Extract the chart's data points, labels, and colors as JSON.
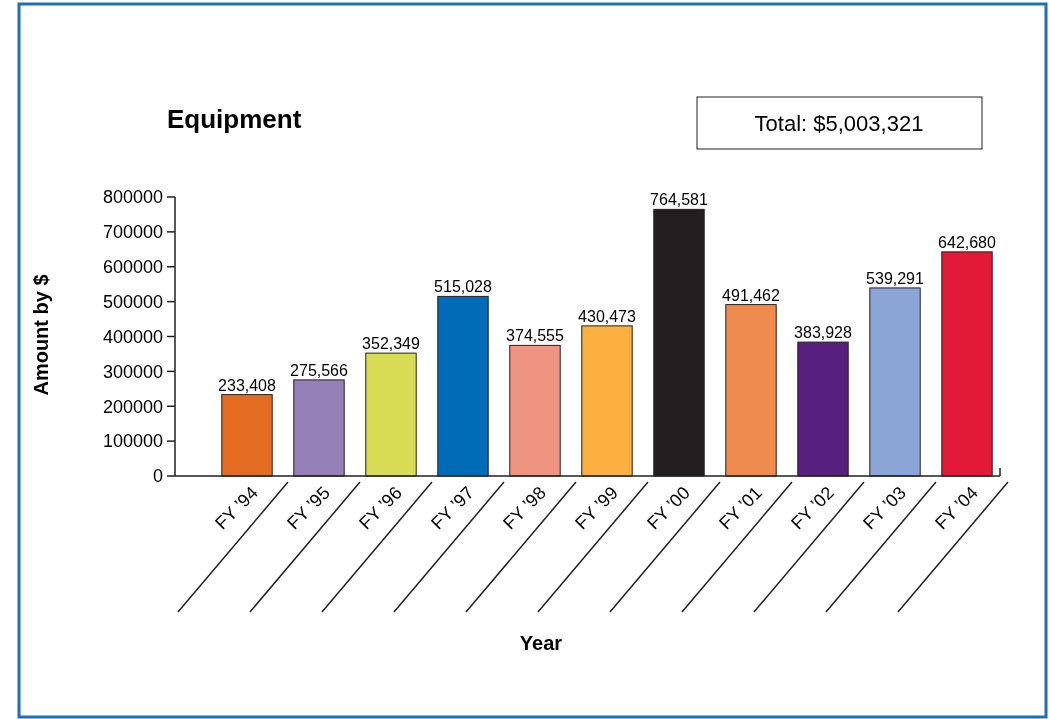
{
  "chart_data": {
    "type": "bar",
    "title": "Equipment",
    "xlabel": "Year",
    "ylabel": "Amount by $",
    "annotations": [
      "Total: $5,003,321"
    ],
    "categories": [
      "FY ’94",
      "FY ’95",
      "FY ’96",
      "FY ’97",
      "FY ’98",
      "FY ’99",
      "FY ’00",
      "FY ’01",
      "FY ’02",
      "FY ’03",
      "FY ’04"
    ],
    "values": [
      233408,
      275566,
      352349,
      515028,
      374555,
      430473,
      764581,
      491462,
      383928,
      539291,
      642680
    ],
    "colors": [
      "#e46c22",
      "#9581b7",
      "#d8dc55",
      "#006bb6",
      "#f09482",
      "#fbb040",
      "#231f20",
      "#f08b4f",
      "#58207e",
      "#8ba5d6",
      "#e21a37"
    ],
    "ylim": [
      0,
      800000
    ],
    "yticks": [
      0,
      100000,
      200000,
      300000,
      400000,
      500000,
      600000,
      700000,
      800000
    ],
    "value_labels": [
      "233,408",
      "275,566",
      "352,349",
      "515,028",
      "374,555",
      "430,473",
      "764,581",
      "491,462",
      "383,928",
      "539,291",
      "642,680"
    ],
    "grid": false
  }
}
